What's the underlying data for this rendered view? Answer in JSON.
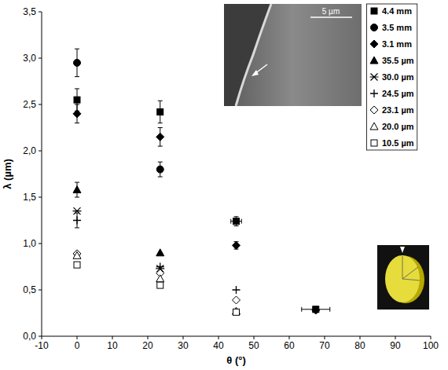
{
  "chart_data": {
    "type": "scatter",
    "x_label": "θ (°)",
    "y_label": "λ (µm)",
    "xlim": [
      -10,
      100
    ],
    "xticks": [
      -10,
      0,
      10,
      20,
      30,
      40,
      50,
      60,
      70,
      80,
      90,
      100
    ],
    "ylim": [
      0,
      3.5
    ],
    "yticks": [
      {
        "value": 0,
        "label": "0,0"
      },
      {
        "value": 0.5,
        "label": "0,5"
      },
      {
        "value": 1,
        "label": "1,0"
      },
      {
        "value": 1.5,
        "label": "1,5"
      },
      {
        "value": 2,
        "label": "2,0"
      },
      {
        "value": 2.5,
        "label": "2,5"
      },
      {
        "value": 3,
        "label": "3,0"
      },
      {
        "value": 3.5,
        "label": "3,5"
      }
    ],
    "grid": false,
    "legend": "upper right",
    "annotations": [
      "5 µm"
    ],
    "series": [
      {
        "name": "4.4 mm",
        "color": "#000000",
        "marker": "square",
        "x": [
          0,
          23.5,
          45,
          67.5
        ],
        "values": [
          2.55,
          2.42,
          1.24,
          0.29
        ],
        "y_errors": [
          0.12,
          0.12,
          0.05,
          0.03
        ],
        "x_errors": [
          null,
          null,
          1.5,
          4
        ]
      },
      {
        "name": "3.5 mm",
        "color": "#000000",
        "marker": "circle",
        "x": [
          0,
          23.5
        ],
        "values": [
          2.95,
          1.8
        ],
        "y_errors": [
          0.15,
          0.08
        ],
        "x_errors": [
          null,
          null
        ]
      },
      {
        "name": "3.1 mm",
        "color": "#000000",
        "marker": "diamond",
        "x": [
          0,
          23.5,
          45,
          67.5
        ],
        "values": [
          2.4,
          2.15,
          0.98,
          0.28
        ],
        "y_errors": [
          0.1,
          0.1,
          0.04,
          null
        ],
        "x_errors": [
          null,
          null,
          null,
          null
        ]
      },
      {
        "name": "35.5 µm",
        "color": "#000000",
        "marker": "triangle",
        "x": [
          0,
          23.5
        ],
        "values": [
          1.58,
          0.9
        ],
        "y_errors": [
          0.08,
          null
        ],
        "x_errors": [
          null,
          null
        ]
      },
      {
        "name": "30.0 µm",
        "color": "#000000",
        "marker": "asterisk",
        "x": [
          0,
          23.5
        ],
        "values": [
          1.35,
          0.73
        ],
        "y_errors": [
          null,
          null
        ],
        "x_errors": [
          null,
          null
        ]
      },
      {
        "name": "24.5 µm",
        "color": "#000000",
        "marker": "plus",
        "x": [
          0,
          23.5,
          45
        ],
        "values": [
          1.25,
          0.75,
          0.5
        ],
        "y_errors": [
          0.08,
          null,
          null
        ],
        "x_errors": [
          null,
          null,
          null
        ]
      },
      {
        "name": "23.1 µm",
        "color": "#000000",
        "marker": "open-diamond",
        "x": [
          0,
          23.5,
          45
        ],
        "values": [
          0.89,
          0.68,
          0.39
        ],
        "y_errors": [
          null,
          null,
          null
        ],
        "x_errors": [
          null,
          null,
          null
        ]
      },
      {
        "name": "20.0 µm",
        "color": "#000000",
        "marker": "open-triangle",
        "x": [
          0,
          23.5,
          45
        ],
        "values": [
          0.87,
          0.62,
          0.27
        ],
        "y_errors": [
          null,
          null,
          null
        ],
        "x_errors": [
          null,
          null,
          null
        ]
      },
      {
        "name": "10.5 µm",
        "color": "#000000",
        "marker": "open-square",
        "x": [
          0,
          23.5,
          45
        ],
        "values": [
          0.77,
          0.55,
          0.26
        ],
        "y_errors": [
          null,
          null,
          null
        ],
        "x_errors": [
          null,
          null,
          null
        ]
      }
    ]
  }
}
